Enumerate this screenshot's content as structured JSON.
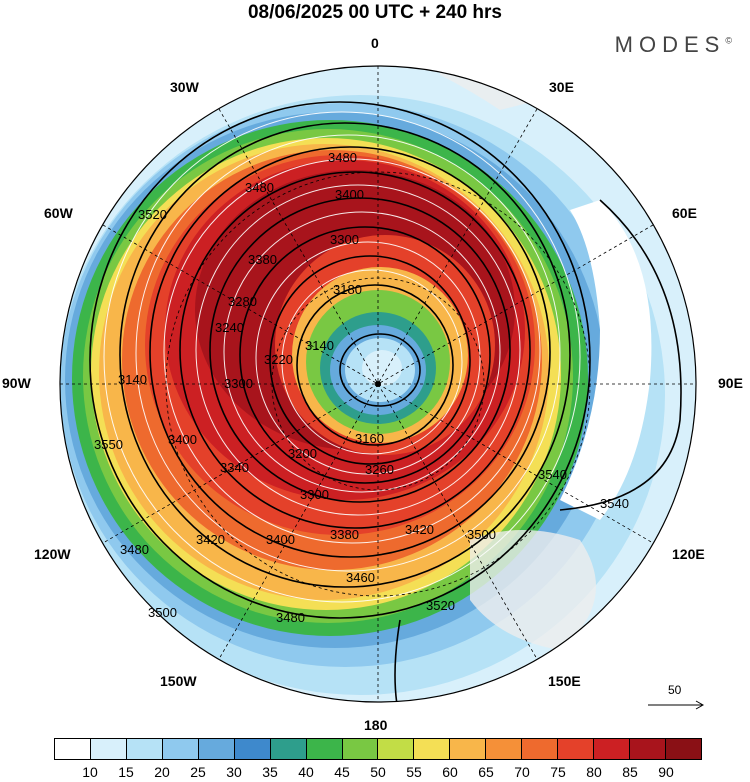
{
  "title": "08/06/2025  00 UTC  + 240 hrs",
  "logo": "MODES",
  "logo_mark": "©",
  "longitude_labels": [
    "0",
    "30E",
    "60E",
    "90E",
    "120E",
    "150E",
    "180",
    "150W",
    "120W",
    "90W",
    "60W",
    "30W"
  ],
  "contour_labels": [
    "3480",
    "3400",
    "3300",
    "3180",
    "3140",
    "3160",
    "3200",
    "3260",
    "3300",
    "3380",
    "3420",
    "3460",
    "3520",
    "3540",
    "3540",
    "3500",
    "3480",
    "3400",
    "3550",
    "3140",
    "3300",
    "3220",
    "3380",
    "3480",
    "3520",
    "3400",
    "3340",
    "3420",
    "3480",
    "3500",
    "3280",
    "3240"
  ],
  "reference_vector": {
    "value": "50"
  },
  "colorbar": {
    "colors": [
      "#ffffff",
      "#d8f0fb",
      "#b6e2f6",
      "#8fc9ee",
      "#66aadd",
      "#3e89cc",
      "#2e9e8c",
      "#3cb54a",
      "#79c843",
      "#c2dd46",
      "#f4df55",
      "#f8b64a",
      "#f59038",
      "#ee6a2e",
      "#e4412a",
      "#cc2023",
      "#a8141c",
      "#8a1015"
    ],
    "tick_labels": [
      "10",
      "15",
      "20",
      "25",
      "30",
      "35",
      "40",
      "45",
      "50",
      "55",
      "60",
      "65",
      "70",
      "75",
      "80",
      "85",
      "90"
    ]
  }
}
